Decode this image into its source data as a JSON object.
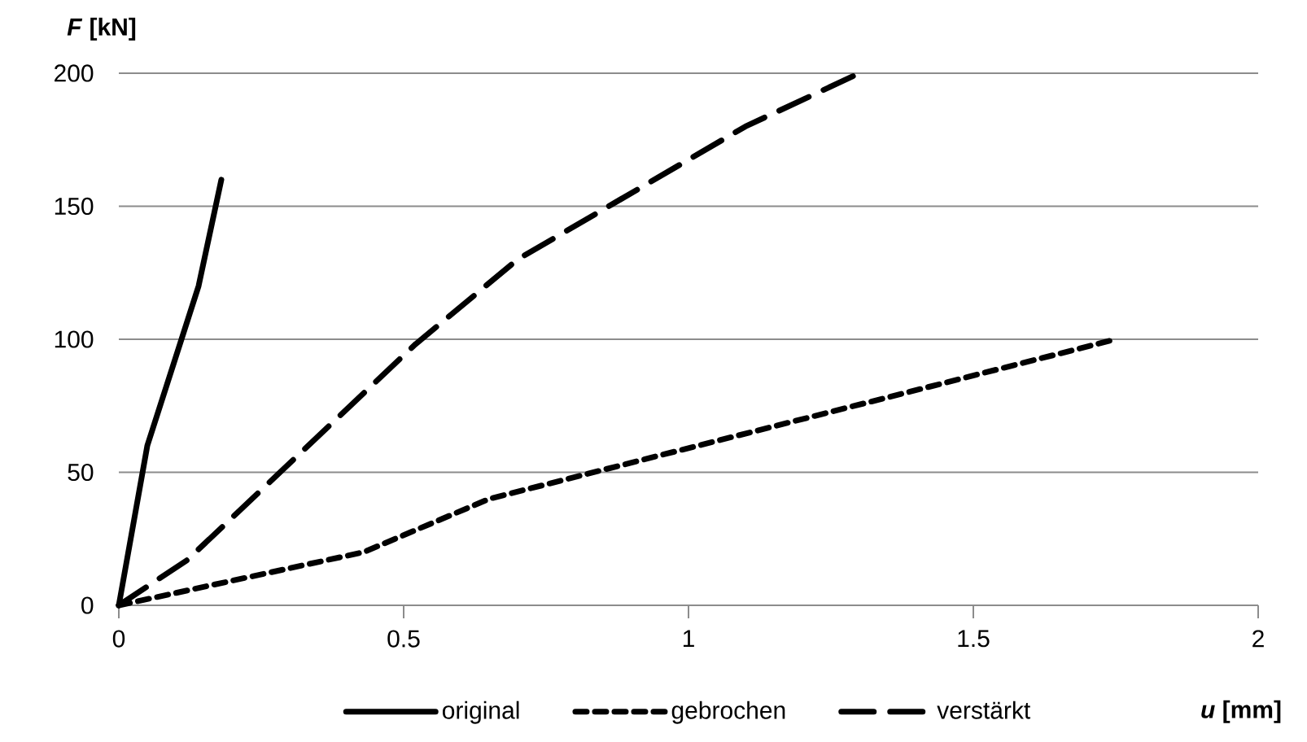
{
  "chart_data": {
    "type": "line",
    "xlabel": "*u* [mm]",
    "ylabel": "*F* [kN]",
    "xlim": [
      0,
      2
    ],
    "ylim": [
      0,
      200
    ],
    "xticks": [
      0,
      0.5,
      1,
      1.5,
      2
    ],
    "yticks": [
      0,
      50,
      100,
      150,
      200
    ],
    "grid": "y",
    "legend": "bottom",
    "series": [
      {
        "name": "original",
        "color": "#000000",
        "line_style": "solid",
        "x": [
          0,
          0.05,
          0.14,
          0.18
        ],
        "values": [
          0,
          60,
          120,
          160
        ]
      },
      {
        "name": "gebrochen",
        "color": "#000000",
        "line_style": "dotted",
        "x": [
          0,
          0.43,
          0.65,
          1.75
        ],
        "values": [
          0,
          20,
          40,
          100
        ]
      },
      {
        "name": "verstärkt",
        "color": "#000000",
        "line_style": "dashed",
        "x": [
          0,
          0.12,
          0.52,
          0.7,
          1.1,
          1.3
        ],
        "values": [
          0,
          17,
          98,
          130,
          180,
          200
        ]
      }
    ]
  }
}
